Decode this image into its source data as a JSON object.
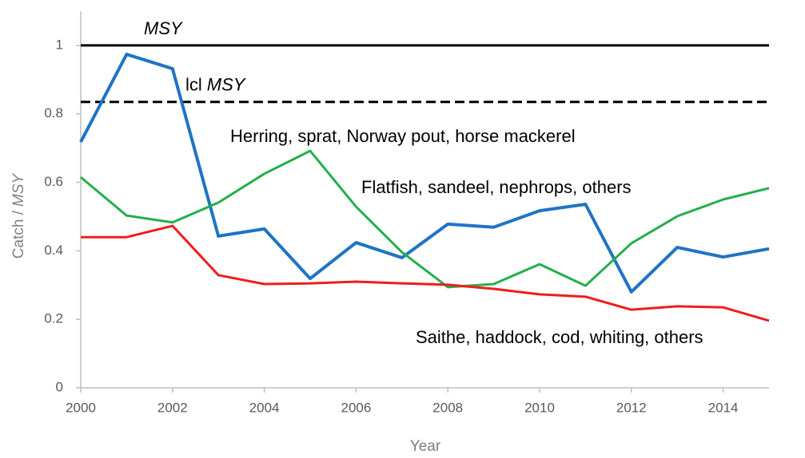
{
  "chart_data": {
    "type": "line",
    "x": [
      2000,
      2001,
      2002,
      2003,
      2004,
      2005,
      2006,
      2007,
      2008,
      2009,
      2010,
      2011,
      2012,
      2013,
      2014,
      2015
    ],
    "series": [
      {
        "name": "Herring, sprat, Norway pout, horse mackerel",
        "color": "#1f74c4",
        "width": 4,
        "values": [
          0.718,
          0.974,
          0.932,
          0.443,
          0.464,
          0.319,
          0.424,
          0.38,
          0.478,
          0.469,
          0.517,
          0.536,
          0.28,
          0.41,
          0.382,
          0.406
        ]
      },
      {
        "name": "Flatfish, sandeel, nephrops, others",
        "color": "#22b04b",
        "width": 3,
        "values": [
          0.615,
          0.503,
          0.483,
          0.541,
          0.625,
          0.692,
          0.529,
          0.396,
          0.294,
          0.303,
          0.361,
          0.298,
          0.422,
          0.501,
          0.55,
          0.583
        ]
      },
      {
        "name": "Saithe, haddock, cod, whiting, others",
        "color": "#f01c1c",
        "width": 3,
        "values": [
          0.44,
          0.44,
          0.473,
          0.329,
          0.303,
          0.305,
          0.31,
          0.305,
          0.301,
          0.289,
          0.273,
          0.266,
          0.228,
          0.238,
          0.235,
          0.196
        ]
      }
    ],
    "reference_lines": [
      {
        "value": 1,
        "label_parts": [
          "MSY"
        ],
        "style": "solid",
        "color": "#000000"
      },
      {
        "value": 0.835,
        "label_parts": [
          "lcl",
          "MSY"
        ],
        "style": "dashed",
        "color": "#000000"
      }
    ],
    "xlabel": "Year",
    "ylabel_parts": [
      "Catch /",
      "MSY"
    ],
    "xlim": [
      2000,
      2015
    ],
    "xticks": [
      2000,
      2002,
      2004,
      2006,
      2008,
      2010,
      2012,
      2014
    ],
    "ylim": [
      0,
      1.1
    ],
    "yticks": [
      0,
      0.2,
      0.4,
      0.6,
      0.8,
      1
    ],
    "grid": false
  }
}
